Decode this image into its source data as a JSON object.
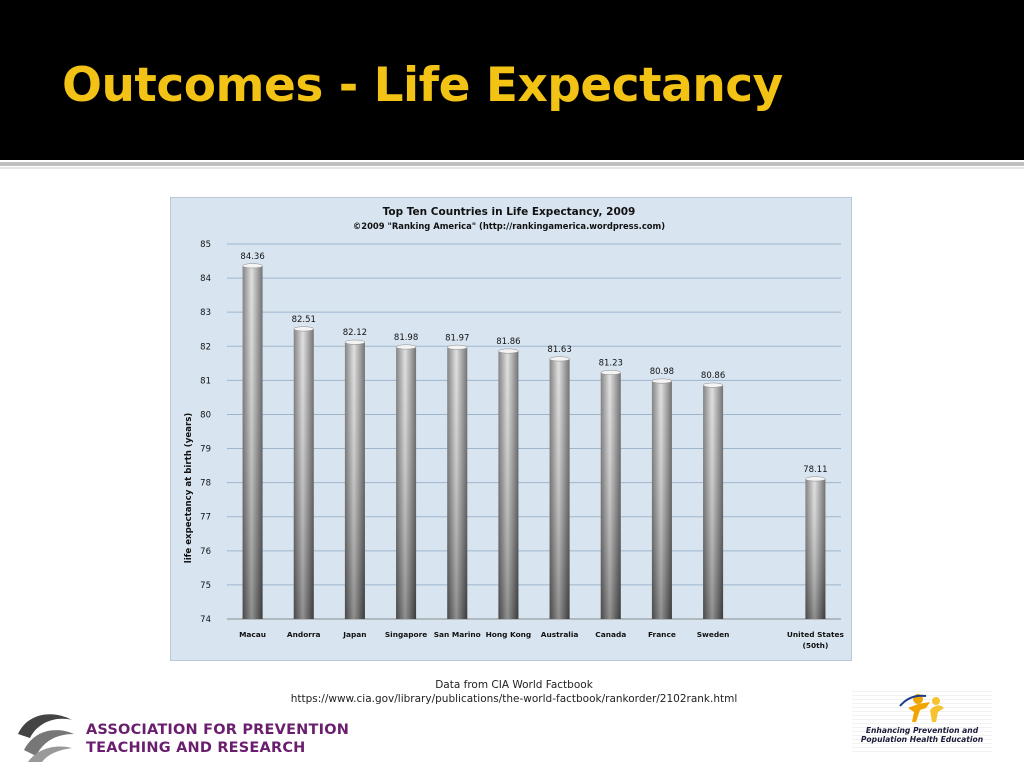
{
  "slide": {
    "title": "Outcomes - Life Expectancy",
    "accent_color": "#f2c314",
    "header_bg": "#000000"
  },
  "source": {
    "line1": "Data from CIA World Factbook",
    "line2": "https://www.cia.gov/library/publications/the-world-factbook/rankorder/2102rank.html"
  },
  "footer": {
    "org_line1": "ASSOCIATION FOR PREVENTION",
    "org_line2": "TEACHING AND RESEARCH",
    "org_color": "#6a1f6e",
    "partner_line1": "Enhancing Prevention and",
    "partner_line2": "Population Health Education"
  },
  "chart_data": {
    "type": "bar",
    "title": "Top Ten Countries in Life Expectancy, 2009",
    "subtitle": "©2009 \"Ranking America\" (http://rankingamerica.wordpress.com)",
    "xlabel": "",
    "ylabel": "life expectancy at birth (years)",
    "ylim": [
      74,
      85
    ],
    "yticks": [
      74,
      75,
      76,
      77,
      78,
      79,
      80,
      81,
      82,
      83,
      84,
      85
    ],
    "grid": true,
    "background_color": "#d8e5f1",
    "categories": [
      "Macau",
      "Andorra",
      "Japan",
      "Singapore",
      "San Marino",
      "Hong Kong",
      "Australia",
      "Canada",
      "France",
      "Sweden",
      "",
      "United States (50th)"
    ],
    "values": [
      84.36,
      82.51,
      82.12,
      81.98,
      81.97,
      81.86,
      81.63,
      81.23,
      80.98,
      80.86,
      null,
      78.11
    ],
    "data_labels": [
      "84.36",
      "82.51",
      "82.12",
      "81.98",
      "81.97",
      "81.86",
      "81.63",
      "81.23",
      "80.98",
      "80.86",
      "",
      "78.11"
    ]
  }
}
